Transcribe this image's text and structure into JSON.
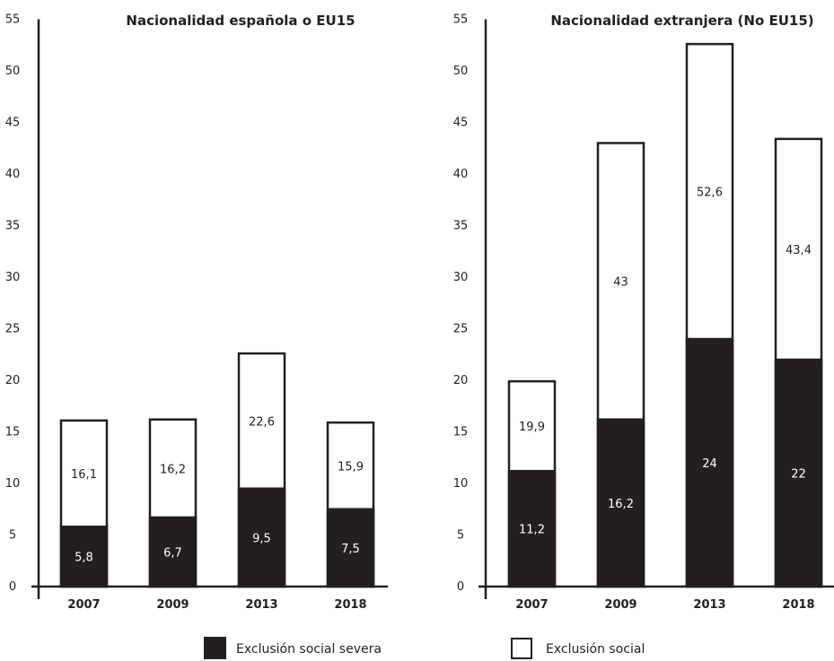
{
  "colors": {
    "severe": "#231f20",
    "social": "#ffffff",
    "stroke": "#231f20",
    "label_on_dark": "#ffffff",
    "label_on_light": "#231f20"
  },
  "legend": {
    "severe_label": "Exclusión social severa",
    "social_label": "Exclusión social"
  },
  "chart_data": [
    {
      "type": "bar",
      "title": "Nacionalidad española o EU15",
      "categories": [
        "2007",
        "2009",
        "2013",
        "2018"
      ],
      "ylim": [
        0,
        55
      ],
      "yticks": [
        "0",
        "5",
        "10",
        "15",
        "20",
        "25",
        "30",
        "35",
        "40",
        "45",
        "50",
        "55"
      ],
      "grid": false,
      "series": [
        {
          "name": "Exclusión social severa",
          "values": [
            5.8,
            6.7,
            9.5,
            7.5
          ],
          "labels": [
            "5,8",
            "6,7",
            "9,5",
            "7,5"
          ]
        },
        {
          "name": "Exclusión social",
          "values": [
            16.1,
            16.2,
            22.6,
            15.9
          ],
          "labels": [
            "16,1",
            "16,2",
            "22,6",
            "15,9"
          ]
        }
      ]
    },
    {
      "type": "bar",
      "title": "Nacionalidad extranjera (No EU15)",
      "categories": [
        "2007",
        "2009",
        "2013",
        "2018"
      ],
      "ylim": [
        0,
        55
      ],
      "yticks": [
        "0",
        "5",
        "10",
        "15",
        "20",
        "25",
        "30",
        "35",
        "40",
        "45",
        "50",
        "55"
      ],
      "grid": false,
      "series": [
        {
          "name": "Exclusión social severa",
          "values": [
            11.2,
            16.2,
            24,
            22
          ],
          "labels": [
            "11,2",
            "16,2",
            "24",
            "22"
          ]
        },
        {
          "name": "Exclusión social",
          "values": [
            19.9,
            43,
            52.6,
            43.4
          ],
          "labels": [
            "19,9",
            "43",
            "52,6",
            "43,4"
          ]
        }
      ]
    }
  ]
}
